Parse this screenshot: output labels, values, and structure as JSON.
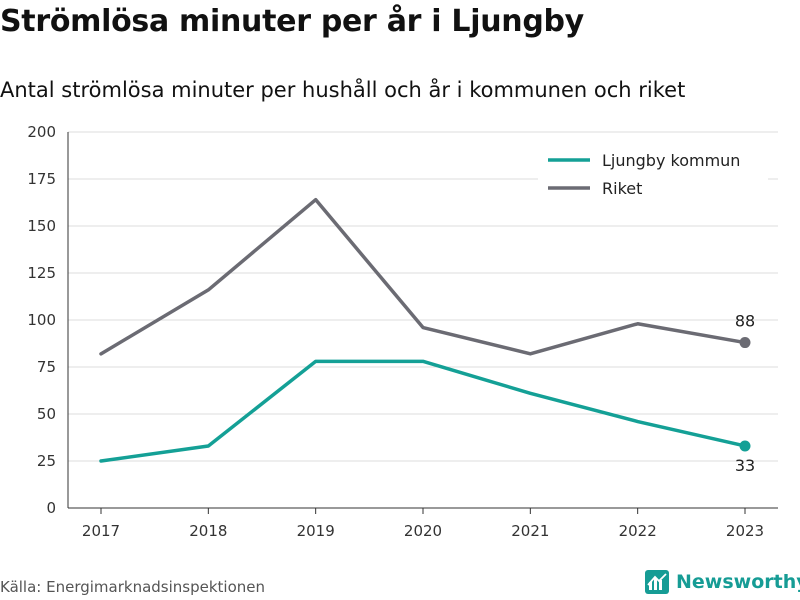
{
  "header": {
    "title": "Strömlösa minuter per år i Ljungby",
    "subtitle": "Antal strömlösa minuter per hushåll och år i kommunen och riket"
  },
  "footer": {
    "source": "Källa: Energimarknadsinspektionen",
    "brand": "Newsworthy"
  },
  "chart_data": {
    "type": "line",
    "x": [
      2017,
      2018,
      2019,
      2020,
      2021,
      2022,
      2023
    ],
    "series": [
      {
        "name": "Ljungby kommun",
        "color": "#14a096",
        "values": [
          25,
          33,
          78,
          78,
          61,
          46,
          33
        ]
      },
      {
        "name": "Riket",
        "color": "#6b6b73",
        "values": [
          82,
          116,
          164,
          96,
          82,
          98,
          88
        ]
      }
    ],
    "end_labels": [
      "33",
      "88"
    ],
    "ylim": [
      0,
      200
    ],
    "yticks": [
      0,
      25,
      50,
      75,
      100,
      125,
      150,
      175,
      200
    ],
    "grid": true,
    "legend": "top-right"
  }
}
